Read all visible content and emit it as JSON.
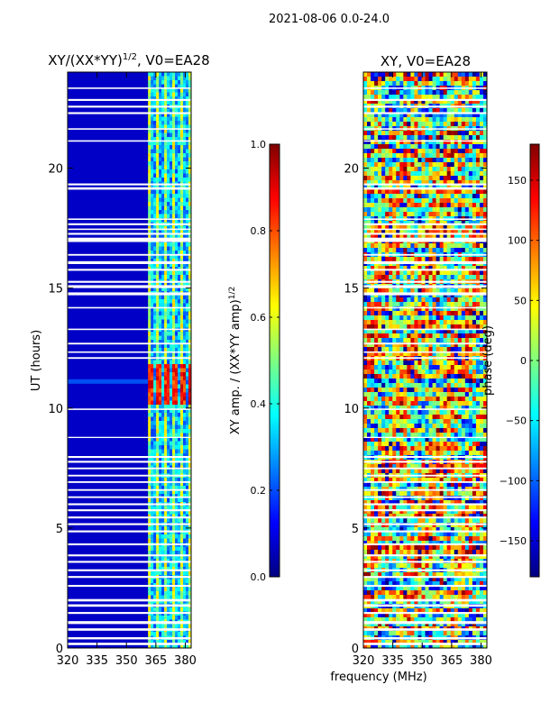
{
  "figure": {
    "suptitle": "2021-08-06 0.0-24.0",
    "shared_xlabel": "frequency (MHz)"
  },
  "chart_data": [
    {
      "type": "heatmap",
      "title": "XY/(XX*YY)^1/2, V0=EA28",
      "title_main": "XY/(XX*YY)",
      "title_exp": "1/2",
      "title_tail": ", V0=EA28",
      "xlabel": "frequency (MHz)",
      "ylabel": "UT (hours)",
      "xlim": [
        320,
        383
      ],
      "ylim": [
        0,
        24
      ],
      "xticks": [
        320,
        335,
        350,
        365,
        380
      ],
      "yticks": [
        0,
        5,
        10,
        15,
        20
      ],
      "colormap": "jet",
      "colorbar": {
        "label": "XY amp. / (XX*YY amp)^1/2",
        "label_main": "XY amp. / (XX*YY amp)",
        "label_exp": "1/2",
        "range": [
          0.0,
          1.0
        ],
        "ticks": [
          0.0,
          0.2,
          0.4,
          0.6,
          0.8,
          1.0
        ],
        "tick_labels": [
          "0.0",
          "0.2",
          "0.4",
          "0.6",
          "0.8",
          "1.0"
        ]
      },
      "description": "Normalized cross-correlation amplitude: mostly low (~0.05) below 360 MHz, elevated striped band 360-383 MHz with peaks ~0.9 near 11 h"
    },
    {
      "type": "heatmap",
      "title": "XY, V0=EA28",
      "xlabel": "frequency (MHz)",
      "ylabel": "phase (deg)",
      "xlim": [
        320,
        383
      ],
      "ylim": [
        0,
        24
      ],
      "xticks": [
        320,
        335,
        350,
        365,
        380
      ],
      "yticks": [
        0,
        5,
        10,
        15,
        20
      ],
      "colormap": "jet",
      "colorbar": {
        "label": "phase (deg)",
        "range": [
          -180,
          180
        ],
        "ticks": [
          -150,
          -100,
          -50,
          0,
          50,
          100,
          150
        ],
        "tick_labels": [
          "−150",
          "−100",
          "−50",
          "0",
          "50",
          "100",
          "150"
        ]
      },
      "description": "XY phase vs frequency and time, wide scatter between -180 and 180 deg"
    }
  ],
  "flagged_time_bands_hours": [
    [
      0.12,
      0.22
    ],
    [
      0.36,
      0.45
    ],
    [
      0.72,
      0.82
    ],
    [
      1.0,
      1.12
    ],
    [
      1.42,
      1.5
    ],
    [
      1.72,
      1.82
    ],
    [
      1.94,
      2.04
    ],
    [
      2.55,
      2.63
    ],
    [
      2.92,
      3.0
    ],
    [
      3.2,
      3.28
    ],
    [
      3.55,
      3.63
    ],
    [
      3.82,
      3.9
    ],
    [
      4.28,
      4.36
    ],
    [
      4.82,
      4.9
    ],
    [
      5.12,
      5.2
    ],
    [
      5.4,
      5.48
    ],
    [
      5.7,
      5.78
    ],
    [
      5.95,
      6.03
    ],
    [
      6.25,
      6.32
    ],
    [
      6.55,
      6.62
    ],
    [
      6.88,
      6.95
    ],
    [
      7.15,
      7.22
    ],
    [
      7.45,
      7.52
    ],
    [
      7.72,
      7.8
    ],
    [
      7.92,
      8.0
    ],
    [
      8.75,
      8.8
    ],
    [
      9.92,
      9.98
    ],
    [
      12.05,
      12.12
    ],
    [
      12.3,
      12.36
    ],
    [
      12.65,
      12.72
    ],
    [
      13.25,
      13.31
    ],
    [
      14.15,
      14.21
    ],
    [
      14.7,
      14.82
    ],
    [
      15.0,
      15.12
    ],
    [
      15.22,
      15.3
    ],
    [
      15.72,
      15.8
    ],
    [
      16.0,
      16.12
    ],
    [
      16.35,
      16.42
    ],
    [
      16.92,
      17.1
    ],
    [
      17.22,
      17.3
    ],
    [
      17.42,
      17.48
    ],
    [
      17.62,
      17.7
    ],
    [
      17.84,
      17.9
    ],
    [
      19.1,
      19.2
    ],
    [
      19.28,
      19.36
    ],
    [
      21.1,
      21.16
    ],
    [
      21.6,
      21.66
    ],
    [
      22.25,
      22.33
    ],
    [
      22.52,
      22.6
    ],
    [
      22.8,
      22.88
    ],
    [
      23.3,
      23.36
    ]
  ]
}
